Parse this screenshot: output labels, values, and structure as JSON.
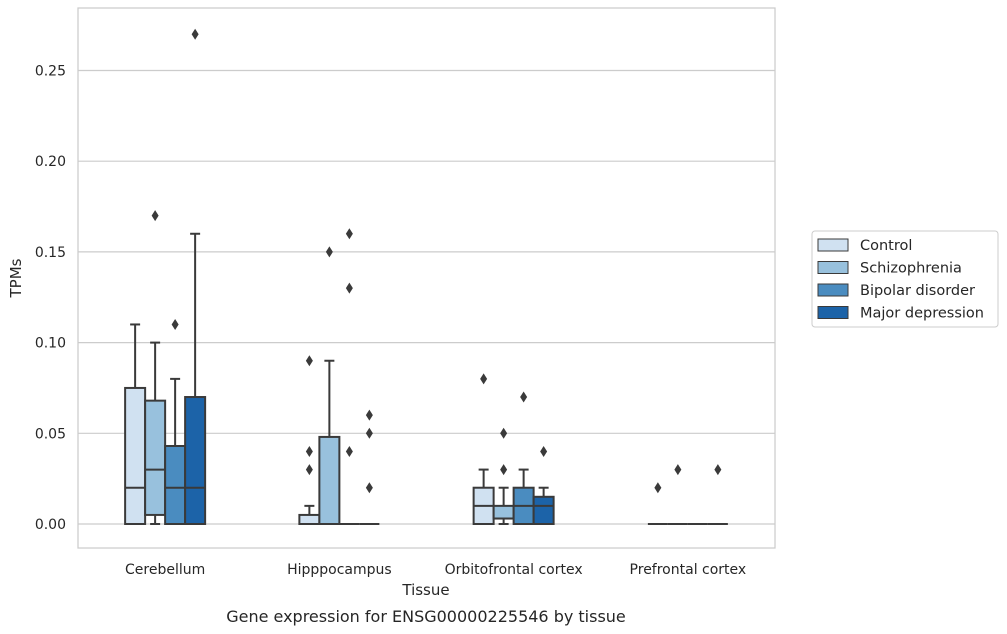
{
  "chart_data": {
    "type": "box",
    "title": "",
    "caption": "Gene expression for ENSG00000225546 by tissue",
    "xlabel": "Tissue",
    "ylabel": "TPMs",
    "ylim": [
      -0.013,
      0.283
    ],
    "yticks": [
      0.0,
      0.05,
      0.1,
      0.15,
      0.2,
      0.25
    ],
    "ytick_labels": [
      "0.00",
      "0.05",
      "0.10",
      "0.15",
      "0.20",
      "0.25"
    ],
    "grid": "horizontal",
    "legend_position": "right",
    "categories": [
      "Cerebellum",
      "Hipppocampus",
      "Orbitofrontal cortex",
      "Prefrontal cortex"
    ],
    "series": [
      {
        "name": "Control",
        "color": "#d0e1f1",
        "boxes": [
          {
            "q1": 0.0,
            "median": 0.02,
            "q3": 0.075,
            "whisker_low": 0.0,
            "whisker_high": 0.11,
            "outliers": []
          },
          {
            "q1": 0.0,
            "median": 0.0,
            "q3": 0.005,
            "whisker_low": 0.0,
            "whisker_high": 0.01,
            "outliers": [
              0.03,
              0.04,
              0.09
            ]
          },
          {
            "q1": 0.0,
            "median": 0.01,
            "q3": 0.02,
            "whisker_low": 0.0,
            "whisker_high": 0.03,
            "outliers": [
              0.08
            ]
          },
          {
            "q1": 0.0,
            "median": 0.0,
            "q3": 0.0,
            "whisker_low": 0.0,
            "whisker_high": 0.0,
            "outliers": [
              0.02
            ]
          }
        ]
      },
      {
        "name": "Schizophrenia",
        "color": "#98c1dd",
        "boxes": [
          {
            "q1": 0.005,
            "median": 0.03,
            "q3": 0.068,
            "whisker_low": 0.0,
            "whisker_high": 0.1,
            "outliers": [
              0.17
            ]
          },
          {
            "q1": 0.0,
            "median": 0.0,
            "q3": 0.048,
            "whisker_low": 0.0,
            "whisker_high": 0.09,
            "outliers": [
              0.15
            ]
          },
          {
            "q1": 0.003,
            "median": 0.003,
            "q3": 0.01,
            "whisker_low": 0.0,
            "whisker_high": 0.02,
            "outliers": [
              0.03,
              0.05
            ]
          },
          {
            "q1": 0.0,
            "median": 0.0,
            "q3": 0.0,
            "whisker_low": 0.0,
            "whisker_high": 0.0,
            "outliers": [
              0.03
            ]
          }
        ]
      },
      {
        "name": "Bipolar disorder",
        "color": "#4a8cc0",
        "boxes": [
          {
            "q1": 0.0,
            "median": 0.02,
            "q3": 0.043,
            "whisker_low": 0.0,
            "whisker_high": 0.08,
            "outliers": [
              0.11
            ]
          },
          {
            "q1": 0.0,
            "median": 0.0,
            "q3": 0.0,
            "whisker_low": 0.0,
            "whisker_high": 0.0,
            "outliers": [
              0.04,
              0.13,
              0.16
            ]
          },
          {
            "q1": 0.0,
            "median": 0.01,
            "q3": 0.02,
            "whisker_low": 0.0,
            "whisker_high": 0.03,
            "outliers": [
              0.07
            ]
          },
          {
            "q1": 0.0,
            "median": 0.0,
            "q3": 0.0,
            "whisker_low": 0.0,
            "whisker_high": 0.0,
            "outliers": []
          }
        ]
      },
      {
        "name": "Major depression",
        "color": "#1c63a8",
        "boxes": [
          {
            "q1": 0.0,
            "median": 0.02,
            "q3": 0.07,
            "whisker_low": 0.0,
            "whisker_high": 0.16,
            "outliers": [
              0.27
            ]
          },
          {
            "q1": 0.0,
            "median": 0.0,
            "q3": 0.0,
            "whisker_low": 0.0,
            "whisker_high": 0.0,
            "outliers": [
              0.02,
              0.05,
              0.06
            ]
          },
          {
            "q1": 0.0,
            "median": 0.01,
            "q3": 0.015,
            "whisker_low": 0.0,
            "whisker_high": 0.02,
            "outliers": [
              0.04
            ]
          },
          {
            "q1": 0.0,
            "median": 0.0,
            "q3": 0.0,
            "whisker_low": 0.0,
            "whisker_high": 0.0,
            "outliers": [
              0.03
            ]
          }
        ]
      }
    ]
  }
}
